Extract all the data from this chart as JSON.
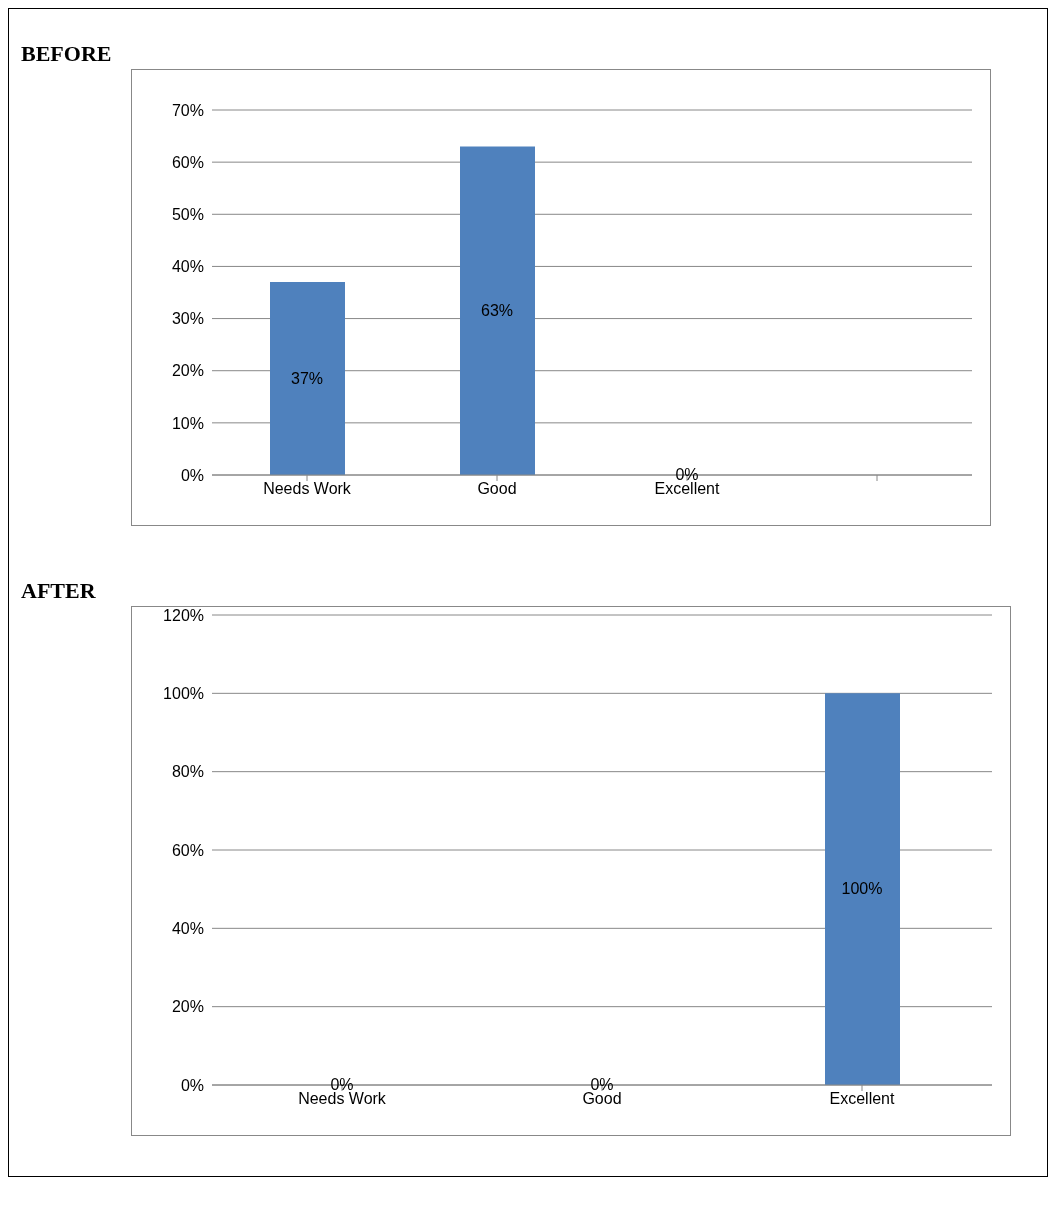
{
  "chart_data": [
    {
      "type": "bar",
      "title": "BEFORE",
      "categories": [
        "Needs Work",
        "Good",
        "Excellent",
        null
      ],
      "values": [
        37,
        63,
        0,
        null
      ],
      "value_labels": [
        "37%",
        "63%",
        "0%",
        null
      ],
      "color": "#4f81bd",
      "ylim": [
        0,
        70
      ],
      "yticks": [
        {
          "value": 0,
          "label": "0%"
        },
        {
          "value": 10,
          "label": "10%"
        },
        {
          "value": 20,
          "label": "20%"
        },
        {
          "value": 30,
          "label": "30%"
        },
        {
          "value": 40,
          "label": "40%"
        },
        {
          "value": 50,
          "label": "50%"
        },
        {
          "value": 60,
          "label": "60%"
        },
        {
          "value": 70,
          "label": "70%"
        }
      ],
      "grid": "y",
      "legend": false
    },
    {
      "type": "bar",
      "title": "AFTER",
      "categories": [
        "Needs Work",
        "Good",
        "Excellent"
      ],
      "values": [
        0,
        0,
        100
      ],
      "value_labels": [
        "0%",
        "0%",
        "100%"
      ],
      "color": "#4f81bd",
      "ylim": [
        0,
        120
      ],
      "yticks": [
        {
          "value": 0,
          "label": "0%"
        },
        {
          "value": 20,
          "label": "20%"
        },
        {
          "value": 40,
          "label": "40%"
        },
        {
          "value": 60,
          "label": "60%"
        },
        {
          "value": 80,
          "label": "80%"
        },
        {
          "value": 100,
          "label": "100%"
        },
        {
          "value": 120,
          "label": "120%"
        }
      ],
      "grid": "y",
      "legend": false
    }
  ]
}
